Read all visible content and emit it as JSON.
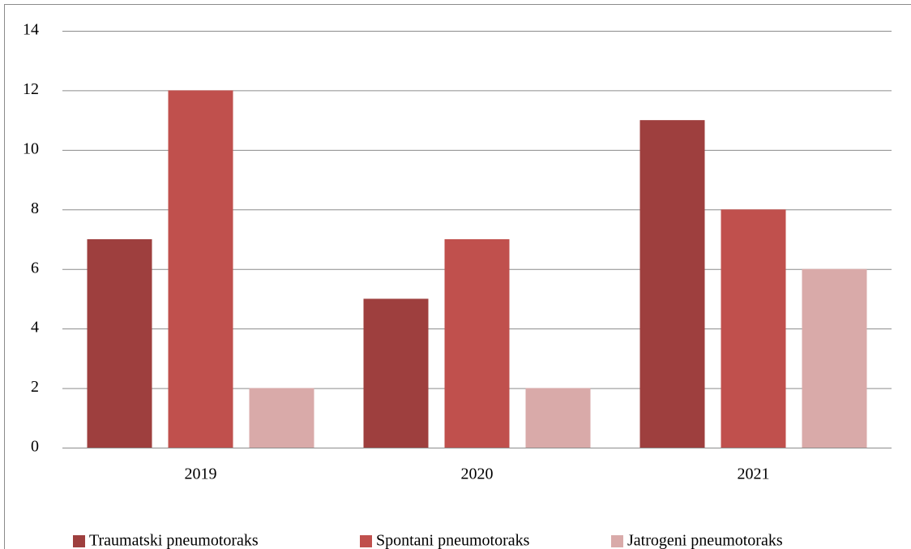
{
  "chart_data": {
    "type": "bar",
    "categories": [
      "2019",
      "2020",
      "2021"
    ],
    "series": [
      {
        "name": "Traumatski pneumotoraks",
        "color": "#9e3f3e",
        "values": [
          7,
          5,
          11
        ]
      },
      {
        "name": "Spontani pneumotoraks",
        "color": "#c0504d",
        "values": [
          12,
          7,
          8
        ]
      },
      {
        "name": "Jatrogeni pneumotoraks",
        "color": "#d9aaa9",
        "values": [
          2,
          2,
          6
        ]
      }
    ],
    "ylim": [
      0,
      14
    ],
    "yticks": [
      0,
      2,
      4,
      6,
      8,
      10,
      12,
      14
    ],
    "grid": true,
    "legend": "bottom"
  }
}
